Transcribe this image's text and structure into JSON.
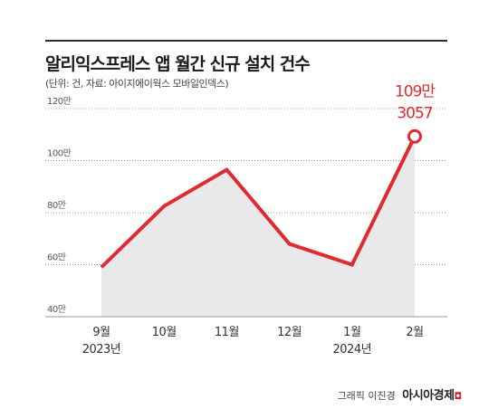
{
  "header": {
    "title": "알리익스프레스 앱 월간 신규 설치 건수",
    "subtitle": "(단위: 건, 자료: 아이지에이웍스 모바일인덱스)"
  },
  "footer": {
    "credit": "그래픽 이진경",
    "brand": "아시아경제"
  },
  "colors": {
    "line": "#e02a30",
    "area": "#e9e9ec",
    "grid": "#9a9a9a",
    "highlight": "#e02a30"
  },
  "chart_data": {
    "type": "area",
    "title": "알리익스프레스 앱 월간 신규 설치 건수",
    "subtitle": "(단위: 건, 자료: 아이지에이웍스 모바일인덱스)",
    "categories": [
      "9월",
      "10월",
      "11월",
      "12월",
      "1월",
      "2월"
    ],
    "year_labels": [
      "2023년",
      "",
      "",
      "",
      "2024년",
      ""
    ],
    "series": [
      {
        "values": [
          590000,
          825000,
          965000,
          680000,
          600000,
          1093057
        ]
      }
    ],
    "ylim": [
      400000,
      1200000
    ],
    "yticks": [
      {
        "value": 400000,
        "label": "40만"
      },
      {
        "value": 600000,
        "label": "60만"
      },
      {
        "value": 800000,
        "label": "80만"
      },
      {
        "value": 1000000,
        "label": "100만"
      },
      {
        "value": 1200000,
        "label": "120만"
      }
    ],
    "annotation": {
      "index": 5,
      "line1": "109만",
      "line2": "3057"
    },
    "grid": true
  }
}
